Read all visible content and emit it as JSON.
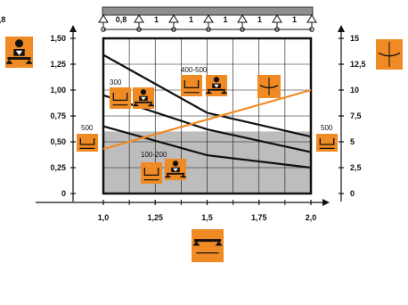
{
  "colors": {
    "background": "#ffffff",
    "shade": "#bdbdbd",
    "axis": "#111111",
    "grid": "#111111",
    "accent": "#f08a24",
    "text": "#111111"
  },
  "span_bar": {
    "labels": [
      "0,8",
      "1",
      "1",
      "1",
      "1",
      "1",
      "0,8"
    ]
  },
  "chart_data": {
    "type": "line",
    "x": [
      1.0,
      1.25,
      1.5,
      1.75,
      2.0
    ],
    "xlim": [
      1.0,
      2.0
    ],
    "x_ticks": [
      "1,0",
      "1,25",
      "1,5",
      "1,75",
      "2,0"
    ],
    "y_left_ticks": [
      "0",
      "0,25",
      "0,50",
      "0,75",
      "1,00",
      "1,25",
      "1,50"
    ],
    "ylim_left": [
      0,
      1.5
    ],
    "y_right_ticks": [
      "0",
      "2,5",
      "5",
      "7,5",
      "10",
      "12,5",
      "15"
    ],
    "ylim_right": [
      0,
      15
    ],
    "shaded_region": {
      "y_left_max": 0.6
    },
    "series": [
      {
        "axis": "left",
        "color": "#111111",
        "x": [
          1.0,
          1.5,
          2.0
        ],
        "y": [
          1.34,
          0.78,
          0.55
        ]
      },
      {
        "axis": "left",
        "color": "#111111",
        "x": [
          1.0,
          1.5,
          2.0
        ],
        "y": [
          0.95,
          0.62,
          0.4
        ]
      },
      {
        "axis": "left",
        "color": "#111111",
        "x": [
          1.0,
          1.5,
          2.0
        ],
        "y": [
          0.65,
          0.37,
          0.25
        ]
      },
      {
        "axis": "right",
        "color": "#f08a24",
        "x": [
          1.0,
          2.0
        ],
        "y": [
          4.3,
          10.0
        ]
      }
    ],
    "annotations": [
      {
        "text": "300",
        "x": 1.04,
        "y": 1.08
      },
      {
        "text": "400-500",
        "x": 1.36,
        "y": 1.19
      },
      {
        "text": "100-200",
        "x": 1.18,
        "y": 0.34
      },
      {
        "text": "500",
        "side": "left"
      },
      {
        "text": "500",
        "side": "right"
      }
    ],
    "grid": true
  },
  "icons": [
    "person-load-icon",
    "beam-deflection-icon",
    "beam-length-icon",
    "formwork-width-icon",
    "person-on-beam-icon",
    "formwork-section-icon"
  ]
}
